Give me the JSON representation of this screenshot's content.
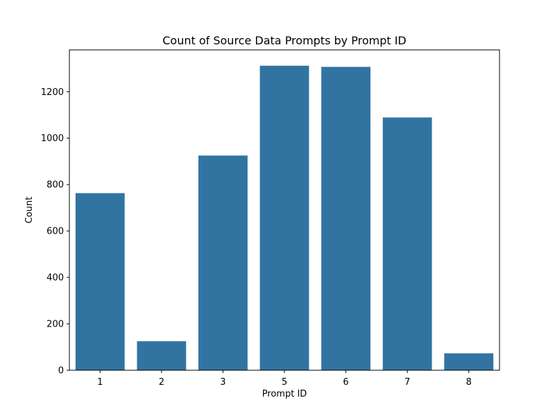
{
  "chart_data": {
    "type": "bar",
    "title": "Count of Source Data Prompts by Prompt ID",
    "xlabel": "Prompt ID",
    "ylabel": "Count",
    "categories": [
      "1",
      "2",
      "3",
      "5",
      "6",
      "7",
      "8"
    ],
    "values": [
      763,
      125,
      925,
      1312,
      1307,
      1089,
      73
    ],
    "ylim": [
      0,
      1380
    ],
    "yticks": [
      0,
      200,
      400,
      600,
      800,
      1000,
      1200
    ],
    "grid": false,
    "legend": "none",
    "bar_color": "#3274a1"
  }
}
